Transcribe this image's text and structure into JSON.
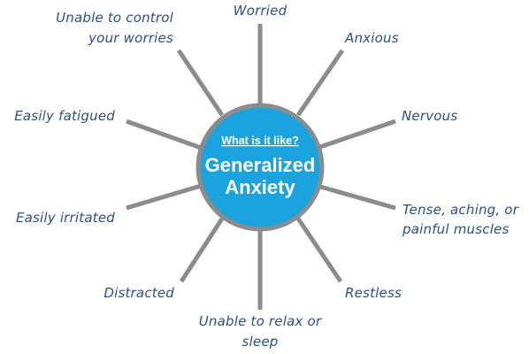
{
  "center": {
    "subtitle": "What is it like?",
    "title_line1": "Generalized",
    "title_line2": "Anxiety",
    "fill_color": "#1ba3e0",
    "border_color": "#8c8c8c"
  },
  "symptoms": [
    {
      "lines": [
        "Worried"
      ]
    },
    {
      "lines": [
        "Anxious"
      ]
    },
    {
      "lines": [
        "Nervous"
      ]
    },
    {
      "lines": [
        "Tense, aching, or",
        "painful muscles"
      ]
    },
    {
      "lines": [
        "Restless"
      ]
    },
    {
      "lines": [
        "Unable to relax or",
        "sleep"
      ]
    },
    {
      "lines": [
        "Distracted"
      ]
    },
    {
      "lines": [
        "Easily irritated"
      ]
    },
    {
      "lines": [
        "Easily fatigued"
      ]
    },
    {
      "lines": [
        "Unable to control",
        "your worries"
      ]
    }
  ],
  "colors": {
    "label_text": "#2b4f86",
    "spoke": "#8c8c8c"
  }
}
